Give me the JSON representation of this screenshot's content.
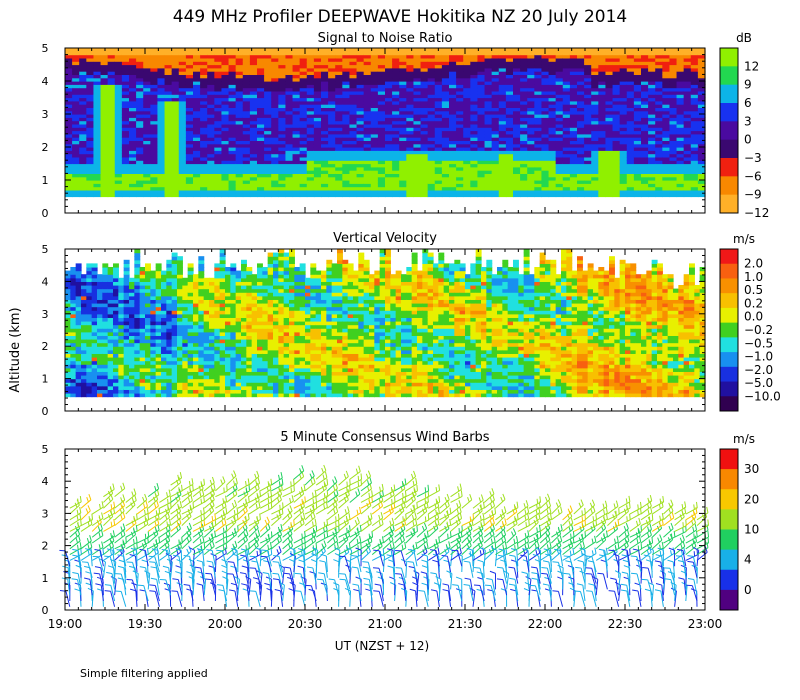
{
  "figure": {
    "title": "449 MHz Profiler DEEPWAVE Hokitika NZ 20 July 2014",
    "shared_ylabel": "Altitude (km)",
    "xlabel": "UT  (NZST + 12)",
    "footnote": "Simple filtering applied",
    "background": "#ffffff"
  },
  "chart_data": [
    {
      "id": "snr",
      "type": "heatmap",
      "title": "Signal to Noise Ratio",
      "unit_label": "dB",
      "x_range": [
        19.0,
        23.0
      ],
      "ylim": [
        0,
        5
      ],
      "y_ticks": [
        "0",
        "1",
        "2",
        "3",
        "4",
        "5"
      ],
      "x_ticks": [
        19.0,
        19.5,
        20.0,
        20.5,
        21.0,
        21.5,
        22.0,
        22.5,
        23.0
      ],
      "colorbar": {
        "colors": [
          "#90f000",
          "#22d850",
          "#0cb4e8",
          "#1832f0",
          "#4a0aa0",
          "#3a0870",
          "#f02010",
          "#f88800",
          "#ffb028"
        ],
        "tick_labels": [
          "12",
          "9",
          "6",
          "3",
          "0",
          "−3",
          "−6",
          "−9",
          "−12"
        ]
      },
      "features": [
        {
          "name": "low-snr fringe",
          "value_db": -12,
          "alt_km": [
            4.6,
            5.0
          ]
        },
        {
          "name": "boundary layer max",
          "value_db": 12,
          "time_ut": [
            21.0,
            22.0
          ],
          "alt_km": [
            0.6,
            1.6
          ]
        },
        {
          "name": "plume 19:15",
          "value_db": 12,
          "time_ut": [
            19.25,
            19.35
          ],
          "alt_km": [
            0.8,
            4.0
          ]
        },
        {
          "name": "plume 19:40",
          "value_db": 12,
          "time_ut": [
            19.6,
            19.75
          ],
          "alt_km": [
            1.0,
            3.5
          ]
        }
      ]
    },
    {
      "id": "vertical-velocity",
      "type": "heatmap",
      "title": "Vertical Velocity",
      "unit_label": "m/s",
      "x_range": [
        19.0,
        23.0
      ],
      "ylim": [
        0,
        5
      ],
      "y_ticks": [
        "0",
        "1",
        "2",
        "3",
        "4",
        "5"
      ],
      "x_ticks": [
        19.0,
        19.5,
        20.0,
        20.5,
        21.0,
        21.5,
        22.0,
        22.5,
        23.0
      ],
      "colorbar": {
        "colors": [
          "#f01818",
          "#f86010",
          "#f89000",
          "#f8c000",
          "#e8f000",
          "#40d020",
          "#20e0e0",
          "#1890f0",
          "#1830e0",
          "#2010a0",
          "#300050"
        ],
        "tick_labels": [
          "2.0",
          "1.0",
          "0.5",
          "0.2",
          "0.0",
          "−0.2",
          "−0.5",
          "−1.0",
          "−2.0",
          "−5.0",
          "−10.0"
        ]
      },
      "features": [
        {
          "name": "downdraft region",
          "value_ms": -2.0,
          "time_ut": [
            19.0,
            19.7
          ],
          "alt_km": [
            0.5,
            4.5
          ]
        },
        {
          "name": "updraft region",
          "value_ms": 0.2,
          "time_ut": [
            22.2,
            23.0
          ],
          "alt_km": [
            0.5,
            4.0
          ]
        }
      ]
    },
    {
      "id": "wind-barbs",
      "type": "scatter",
      "title": "5 Minute Consensus Wind Barbs",
      "unit_label": "m/s",
      "x_range": [
        19.0,
        23.0
      ],
      "ylim": [
        0,
        5
      ],
      "y_ticks": [
        "0",
        "1",
        "2",
        "3",
        "4",
        "5"
      ],
      "x_ticks": [
        19.0,
        19.5,
        20.0,
        20.5,
        21.0,
        21.5,
        22.0,
        22.5,
        23.0
      ],
      "x_tick_labels": [
        "19:00",
        "19:30",
        "20:00",
        "20:30",
        "21:00",
        "21:30",
        "22:00",
        "22:30",
        "23:00"
      ],
      "colorbar": {
        "colors": [
          "#f01010",
          "#f88800",
          "#f8c800",
          "#a0e020",
          "#20d060",
          "#18b0e8",
          "#1830e8",
          "#500080"
        ],
        "tick_labels": [
          "30",
          "20",
          "10",
          "4",
          "0"
        ]
      },
      "speed_profile": [
        {
          "alt_km": 0.6,
          "speed_ms": 4
        },
        {
          "alt_km": 1.5,
          "speed_ms": 6
        },
        {
          "alt_km": 2.2,
          "speed_ms": 9
        },
        {
          "alt_km": 3.0,
          "speed_ms": 12
        },
        {
          "alt_km": 3.6,
          "speed_ms": 14
        }
      ]
    }
  ]
}
